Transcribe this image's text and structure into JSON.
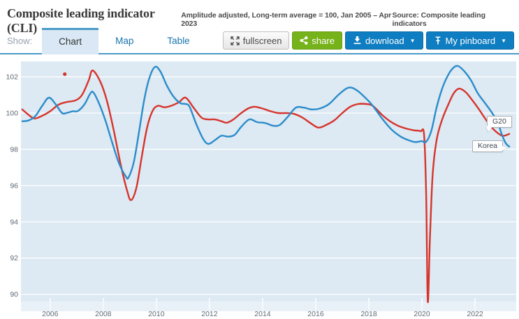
{
  "header": {
    "title": "Composite leading indicator (CLI)",
    "subtitle": "Amplitude adjusted, Long-term average = 100, Jan 2005 – Apr 2023",
    "source": "Source: Composite leading indicators"
  },
  "toolbar": {
    "show_label": "Show:",
    "tabs": [
      {
        "label": "Chart",
        "active": true
      },
      {
        "label": "Map",
        "active": false
      },
      {
        "label": "Table",
        "active": false
      }
    ],
    "fullscreen_label": "fullscreen",
    "share_label": "share",
    "download_label": "download",
    "pinboard_label": "My pinboard",
    "caret": "▼",
    "icons": {
      "fullscreen": "expand-arrows-icon",
      "share": "share-nodes-icon",
      "download": "download-arrow-icon",
      "pinboard": "pushpin-icon"
    },
    "colors": {
      "share_green": "#76b21a",
      "action_blue": "#0e7dc1",
      "tab_blue": "#1874ab"
    }
  },
  "chart_data": {
    "type": "line",
    "title": "Composite leading indicator (CLI)",
    "xlabel": "",
    "ylabel": "",
    "xlim": [
      2004.9,
      2023.55
    ],
    "ylim": [
      89.6,
      102.85
    ],
    "grid": true,
    "plot_bg": "#dde9f3",
    "band_bg": "#e9f1f8",
    "grid_color": "#ffffff",
    "axis_text_color": "#5f6b75",
    "x_ticks": [
      2006,
      2008,
      2010,
      2012,
      2014,
      2016,
      2018,
      2020,
      2022
    ],
    "x_tick_labels": [
      "2006",
      "2008",
      "2010",
      "2012",
      "2014",
      "2016",
      "2018",
      "2020",
      "2022"
    ],
    "y_ticks": [
      90,
      92,
      94,
      96,
      98,
      100,
      102
    ],
    "y_tick_labels": [
      "90",
      "92",
      "94",
      "96",
      "98",
      "100",
      "102"
    ],
    "legend_position": "end-of-line-callouts",
    "marker": {
      "series": "G20",
      "x": 2006.55,
      "y": 102.15
    },
    "series": [
      {
        "name": "G20",
        "color": "#d6342b",
        "points": [
          [
            2004.95,
            100.2
          ],
          [
            2005.15,
            99.95
          ],
          [
            2005.4,
            99.7
          ],
          [
            2005.7,
            99.85
          ],
          [
            2006.0,
            100.1
          ],
          [
            2006.3,
            100.45
          ],
          [
            2006.6,
            100.6
          ],
          [
            2006.95,
            100.7
          ],
          [
            2007.2,
            101.0
          ],
          [
            2007.45,
            101.8
          ],
          [
            2007.6,
            102.35
          ],
          [
            2007.9,
            101.7
          ],
          [
            2008.15,
            100.6
          ],
          [
            2008.4,
            99.0
          ],
          [
            2008.65,
            97.2
          ],
          [
            2008.9,
            95.7
          ],
          [
            2009.05,
            95.2
          ],
          [
            2009.25,
            95.9
          ],
          [
            2009.45,
            97.6
          ],
          [
            2009.65,
            99.2
          ],
          [
            2009.85,
            100.1
          ],
          [
            2010.05,
            100.4
          ],
          [
            2010.3,
            100.32
          ],
          [
            2010.55,
            100.4
          ],
          [
            2010.85,
            100.6
          ],
          [
            2011.1,
            100.85
          ],
          [
            2011.4,
            100.3
          ],
          [
            2011.7,
            99.75
          ],
          [
            2011.95,
            99.65
          ],
          [
            2012.2,
            99.65
          ],
          [
            2012.45,
            99.55
          ],
          [
            2012.65,
            99.47
          ],
          [
            2012.9,
            99.65
          ],
          [
            2013.15,
            99.95
          ],
          [
            2013.45,
            100.25
          ],
          [
            2013.7,
            100.35
          ],
          [
            2014.0,
            100.25
          ],
          [
            2014.3,
            100.1
          ],
          [
            2014.6,
            100.0
          ],
          [
            2014.9,
            100.0
          ],
          [
            2015.2,
            99.95
          ],
          [
            2015.5,
            99.75
          ],
          [
            2015.8,
            99.45
          ],
          [
            2016.1,
            99.2
          ],
          [
            2016.4,
            99.35
          ],
          [
            2016.7,
            99.6
          ],
          [
            2017.0,
            100.0
          ],
          [
            2017.3,
            100.35
          ],
          [
            2017.6,
            100.5
          ],
          [
            2017.9,
            100.5
          ],
          [
            2018.15,
            100.4
          ],
          [
            2018.5,
            99.9
          ],
          [
            2018.8,
            99.55
          ],
          [
            2019.1,
            99.3
          ],
          [
            2019.4,
            99.15
          ],
          [
            2019.7,
            99.05
          ],
          [
            2019.95,
            99.0
          ],
          [
            2020.08,
            98.8
          ],
          [
            2020.16,
            95.5
          ],
          [
            2020.22,
            89.6
          ],
          [
            2020.3,
            93.0
          ],
          [
            2020.4,
            96.5
          ],
          [
            2020.55,
            98.5
          ],
          [
            2020.75,
            99.6
          ],
          [
            2021.0,
            100.5
          ],
          [
            2021.2,
            101.1
          ],
          [
            2021.4,
            101.35
          ],
          [
            2021.65,
            101.15
          ],
          [
            2021.9,
            100.7
          ],
          [
            2022.15,
            100.2
          ],
          [
            2022.45,
            99.55
          ],
          [
            2022.7,
            99.1
          ],
          [
            2022.95,
            98.8
          ],
          [
            2023.1,
            98.75
          ],
          [
            2023.29,
            98.85
          ]
        ]
      },
      {
        "name": "Korea",
        "color": "#2b8cca",
        "points": [
          [
            2004.95,
            99.55
          ],
          [
            2005.2,
            99.6
          ],
          [
            2005.45,
            99.85
          ],
          [
            2005.7,
            100.4
          ],
          [
            2005.95,
            100.85
          ],
          [
            2006.2,
            100.5
          ],
          [
            2006.45,
            100.0
          ],
          [
            2006.65,
            100.02
          ],
          [
            2006.85,
            100.1
          ],
          [
            2007.05,
            100.12
          ],
          [
            2007.3,
            100.5
          ],
          [
            2007.5,
            101.05
          ],
          [
            2007.62,
            101.15
          ],
          [
            2007.85,
            100.5
          ],
          [
            2008.1,
            99.5
          ],
          [
            2008.35,
            98.3
          ],
          [
            2008.6,
            97.2
          ],
          [
            2008.85,
            96.5
          ],
          [
            2008.95,
            96.45
          ],
          [
            2009.15,
            97.3
          ],
          [
            2009.35,
            99.0
          ],
          [
            2009.55,
            100.8
          ],
          [
            2009.75,
            102.0
          ],
          [
            2009.95,
            102.55
          ],
          [
            2010.15,
            102.3
          ],
          [
            2010.4,
            101.5
          ],
          [
            2010.65,
            100.9
          ],
          [
            2010.9,
            100.55
          ],
          [
            2011.1,
            100.5
          ],
          [
            2011.25,
            100.35
          ],
          [
            2011.5,
            99.4
          ],
          [
            2011.75,
            98.6
          ],
          [
            2011.95,
            98.3
          ],
          [
            2012.2,
            98.5
          ],
          [
            2012.45,
            98.75
          ],
          [
            2012.7,
            98.7
          ],
          [
            2012.95,
            98.8
          ],
          [
            2013.2,
            99.25
          ],
          [
            2013.5,
            99.65
          ],
          [
            2013.8,
            99.5
          ],
          [
            2014.1,
            99.45
          ],
          [
            2014.4,
            99.3
          ],
          [
            2014.65,
            99.35
          ],
          [
            2014.95,
            99.8
          ],
          [
            2015.25,
            100.3
          ],
          [
            2015.55,
            100.3
          ],
          [
            2015.85,
            100.2
          ],
          [
            2016.15,
            100.25
          ],
          [
            2016.5,
            100.5
          ],
          [
            2016.85,
            101.0
          ],
          [
            2017.15,
            101.35
          ],
          [
            2017.35,
            101.4
          ],
          [
            2017.6,
            101.2
          ],
          [
            2017.9,
            100.8
          ],
          [
            2018.15,
            100.4
          ],
          [
            2018.5,
            99.7
          ],
          [
            2018.85,
            99.1
          ],
          [
            2019.2,
            98.7
          ],
          [
            2019.5,
            98.5
          ],
          [
            2019.75,
            98.4
          ],
          [
            2020.0,
            98.45
          ],
          [
            2020.15,
            98.4
          ],
          [
            2020.35,
            99.0
          ],
          [
            2020.55,
            100.3
          ],
          [
            2020.75,
            101.3
          ],
          [
            2020.95,
            102.0
          ],
          [
            2021.15,
            102.45
          ],
          [
            2021.35,
            102.6
          ],
          [
            2021.6,
            102.3
          ],
          [
            2021.85,
            101.8
          ],
          [
            2022.1,
            101.1
          ],
          [
            2022.35,
            100.6
          ],
          [
            2022.6,
            100.1
          ],
          [
            2022.85,
            99.5
          ],
          [
            2023.0,
            98.85
          ],
          [
            2023.15,
            98.35
          ],
          [
            2023.29,
            98.15
          ]
        ]
      }
    ]
  }
}
